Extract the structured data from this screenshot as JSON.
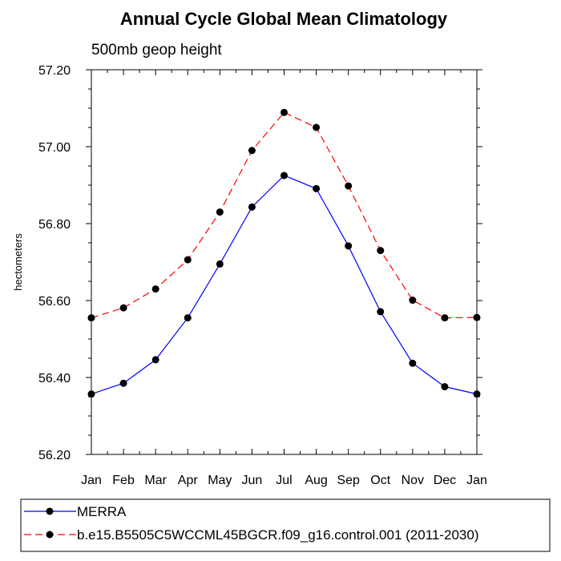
{
  "chart_data": {
    "type": "line",
    "title": "Annual Cycle Global Mean Climatology",
    "subtitle": "500mb geop height",
    "xlabel": "",
    "ylabel": "hectometers",
    "categories": [
      "Jan",
      "Feb",
      "Mar",
      "Apr",
      "May",
      "Jun",
      "Jul",
      "Aug",
      "Sep",
      "Oct",
      "Nov",
      "Dec",
      "Jan"
    ],
    "ylim": [
      56.2,
      57.2
    ],
    "yticks": [
      "56.20",
      "56.40",
      "56.60",
      "56.80",
      "57.00",
      "57.20"
    ],
    "grid": false,
    "legend_position": "bottom",
    "series": [
      {
        "name": "MERRA",
        "color": "#0000ff",
        "line_style": "solid",
        "marker": "filled-circle",
        "values": [
          56.357,
          56.385,
          56.446,
          56.555,
          56.695,
          56.843,
          56.925,
          56.891,
          56.742,
          56.571,
          56.437,
          56.376,
          56.357
        ]
      },
      {
        "name": "b.e15.B5505C5WCCML45BGCR.f09_g16.control.001 (2011-2030)",
        "color": "#ff0000",
        "line_style": "dashed",
        "marker": "filled-circle",
        "values": [
          56.555,
          56.581,
          56.63,
          56.706,
          56.83,
          56.99,
          57.089,
          57.05,
          56.898,
          56.73,
          56.601,
          56.555,
          56.556
        ]
      }
    ]
  }
}
